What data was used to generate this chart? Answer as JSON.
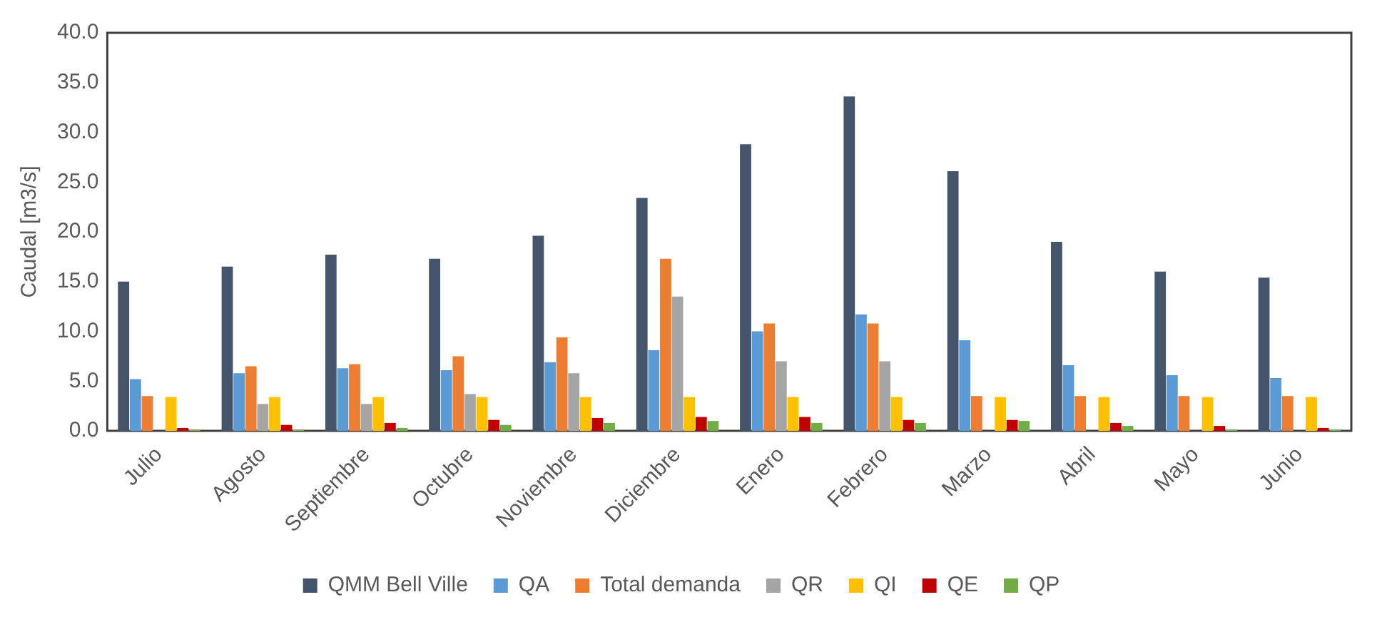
{
  "chart_data": {
    "type": "bar",
    "ylabel": "Caudal [m3/s]",
    "categories": [
      "Julio",
      "Agosto",
      "Septiembre",
      "Octubre",
      "Noviembre",
      "Diciembre",
      "Enero",
      "Febrero",
      "Marzo",
      "Abril",
      "Mayo",
      "Junio"
    ],
    "series": [
      {
        "name": "QMM Bell Ville",
        "color": "#44546a",
        "values": [
          15.0,
          16.5,
          17.7,
          17.3,
          19.6,
          23.4,
          28.8,
          33.6,
          26.1,
          19.0,
          16.0,
          15.4
        ]
      },
      {
        "name": "QA",
        "color": "#5b9bd5",
        "values": [
          5.2,
          5.8,
          6.3,
          6.1,
          6.9,
          8.1,
          10.0,
          11.7,
          9.1,
          6.6,
          5.6,
          5.3
        ]
      },
      {
        "name": "Total demanda",
        "color": "#ed7d31",
        "values": [
          3.5,
          6.5,
          6.7,
          7.5,
          9.4,
          17.3,
          10.8,
          10.8,
          3.5,
          3.5,
          3.5,
          3.5
        ]
      },
      {
        "name": "QR",
        "color": "#a5a5a5",
        "values": [
          0,
          2.7,
          2.7,
          3.7,
          5.8,
          13.5,
          7.0,
          7.0,
          0,
          0,
          0,
          0
        ]
      },
      {
        "name": "QI",
        "color": "#ffc000",
        "values": [
          3.4,
          3.4,
          3.4,
          3.4,
          3.4,
          3.4,
          3.4,
          3.4,
          3.4,
          3.4,
          3.4,
          3.4
        ]
      },
      {
        "name": "QE",
        "color": "#c00000",
        "values": [
          0.3,
          0.6,
          0.8,
          1.1,
          1.3,
          1.4,
          1.4,
          1.1,
          1.1,
          0.8,
          0.5,
          0.3
        ]
      },
      {
        "name": "QP",
        "color": "#70ad47",
        "values": [
          0.1,
          0.1,
          0.3,
          0.6,
          0.8,
          1.0,
          0.8,
          0.8,
          1.0,
          0.5,
          0.1,
          0.1
        ]
      }
    ],
    "ylim": [
      0,
      40
    ],
    "yticks": [
      {
        "value": 0,
        "label": "0.0"
      },
      {
        "value": 5,
        "label": "5.0"
      },
      {
        "value": 10,
        "label": "10.0"
      },
      {
        "value": 15,
        "label": "15.0"
      },
      {
        "value": 20,
        "label": "20.0"
      },
      {
        "value": 25,
        "label": "25.0"
      },
      {
        "value": 30,
        "label": "30.0"
      },
      {
        "value": 35,
        "label": "35.0"
      },
      {
        "value": 40,
        "label": "40.0"
      }
    ],
    "grid": false,
    "legend": "bottom"
  }
}
